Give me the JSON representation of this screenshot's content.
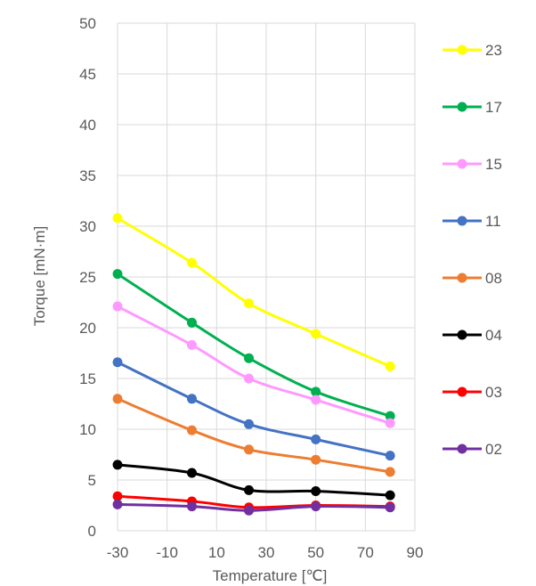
{
  "chart_data": {
    "type": "line",
    "title": "",
    "xlabel": "Temperature [℃]",
    "ylabel": "Torque [mN·m]",
    "xlim": [
      -30,
      90
    ],
    "ylim": [
      0,
      50
    ],
    "xticks": [
      -30,
      -10,
      10,
      30,
      50,
      70,
      90
    ],
    "yticks": [
      0,
      5,
      10,
      15,
      20,
      25,
      30,
      35,
      40,
      45,
      50
    ],
    "xtick_labels": [
      "-30",
      "-10",
      "10",
      "30",
      "50",
      "70",
      "90"
    ],
    "ytick_labels": [
      "0",
      "5",
      "10",
      "15",
      "20",
      "25",
      "30",
      "35",
      "40",
      "45",
      "50"
    ],
    "grid": true,
    "legend_position": "right",
    "x": [
      -30,
      0,
      23,
      50,
      80
    ],
    "series": [
      {
        "name": "23",
        "color": "#ffff00",
        "values": [
          30.8,
          26.4,
          22.4,
          19.4,
          16.2
        ]
      },
      {
        "name": "17",
        "color": "#00b050",
        "values": [
          25.3,
          20.5,
          17.0,
          13.7,
          11.3
        ]
      },
      {
        "name": "15",
        "color": "#ff99ff",
        "values": [
          22.1,
          18.3,
          15.0,
          12.9,
          10.6
        ]
      },
      {
        "name": "11",
        "color": "#4472c4",
        "values": [
          16.6,
          13.0,
          10.5,
          9.0,
          7.4
        ]
      },
      {
        "name": "08",
        "color": "#ed7d31",
        "values": [
          13.0,
          9.9,
          8.0,
          7.0,
          5.8
        ]
      },
      {
        "name": "04",
        "color": "#000000",
        "values": [
          6.5,
          5.7,
          4.0,
          3.9,
          3.5
        ]
      },
      {
        "name": "03",
        "color": "#ff0000",
        "values": [
          3.4,
          2.9,
          2.3,
          2.5,
          2.4
        ]
      },
      {
        "name": "02",
        "color": "#7030a0",
        "values": [
          2.6,
          2.4,
          2.0,
          2.4,
          2.3
        ]
      }
    ]
  }
}
